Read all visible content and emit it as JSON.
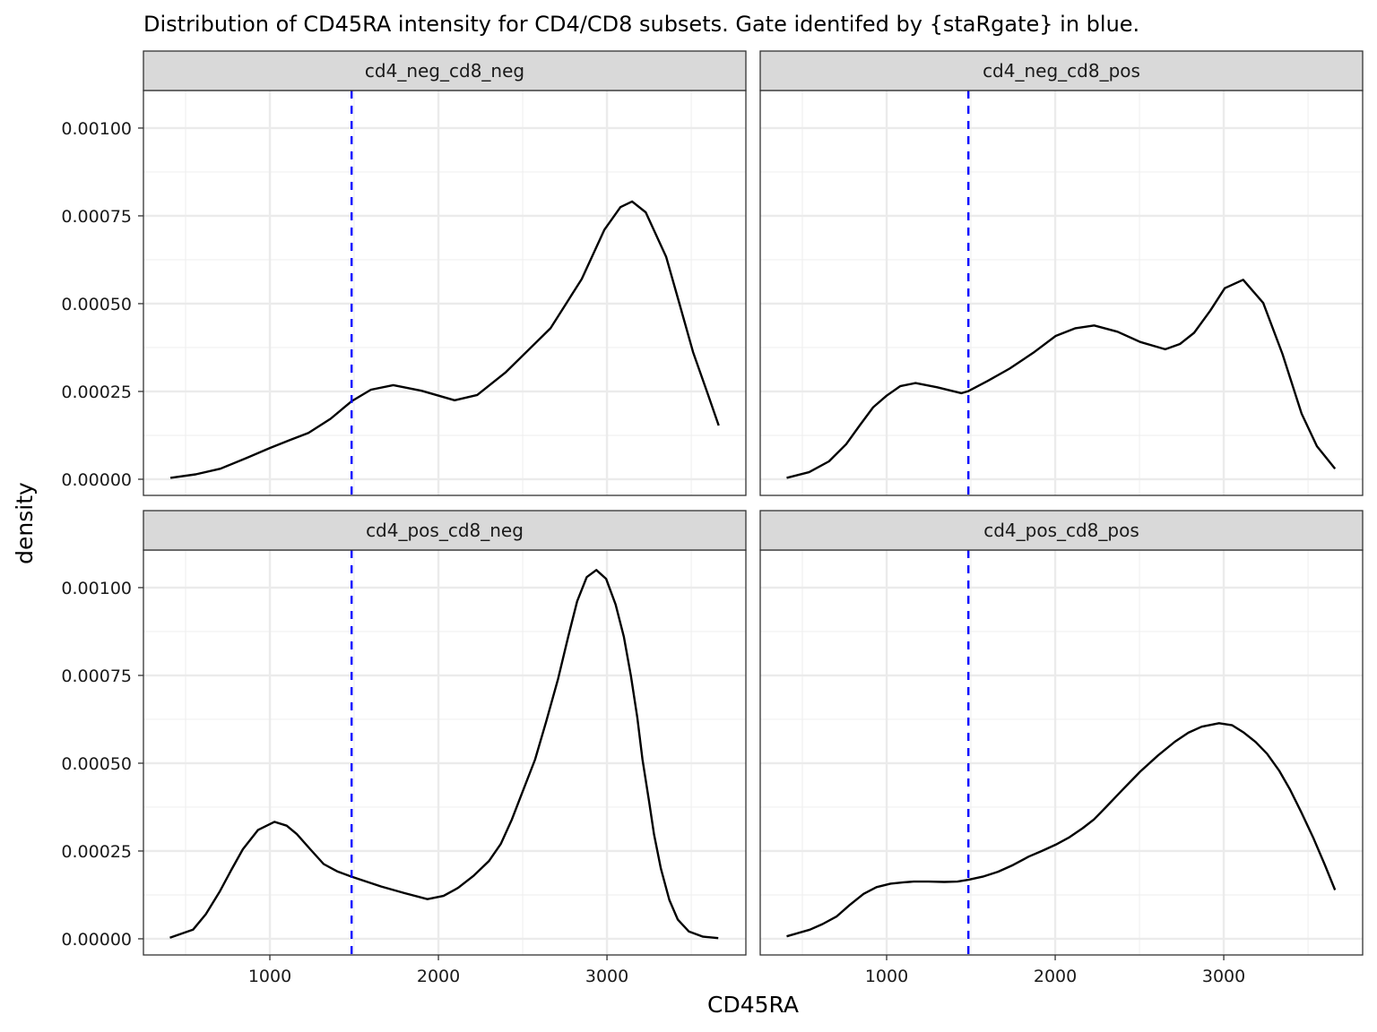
{
  "chart_data": {
    "type": "line",
    "subtype": "faceted density plot",
    "title": "Distribution of CD45RA intensity for CD4/CD8 subsets. Gate identifed by {staRgate} in blue.",
    "xlabel": "CD45RA",
    "ylabel": "density",
    "xlim": [
      250,
      3824
    ],
    "ylim": [
      -4.6e-05,
      0.001107
    ],
    "x_ticks": [
      1000,
      2000,
      3000
    ],
    "x_tick_labels": [
      "1000",
      "2000",
      "3000"
    ],
    "x_minor_ticks": [
      500,
      1500,
      2500,
      3500
    ],
    "y_ticks": [
      0,
      0.00025,
      0.0005,
      0.00075,
      0.001
    ],
    "y_tick_labels": [
      "0.00000",
      "0.00025",
      "0.00050",
      "0.00075",
      "0.00100"
    ],
    "y_minor_ticks": [
      0.000125,
      0.000375,
      0.000625,
      0.000875
    ],
    "grid": true,
    "gate": {
      "x": 1485,
      "color": "#0000ff",
      "style": "dashed",
      "label": "staRgate gate"
    },
    "line_color": "#000000",
    "facets": [
      {
        "name": "cd4_neg_cd8_neg",
        "x": [
          410,
          560,
          707,
          860,
          1000,
          1120,
          1229,
          1360,
          1485,
          1600,
          1732,
          1900,
          2096,
          2230,
          2400,
          2665,
          2850,
          2984,
          3080,
          3149,
          3230,
          3351,
          3430,
          3511,
          3600,
          3663
        ],
        "y": [
          4e-06,
          1.4e-05,
          3e-05,
          6e-05,
          8.9e-05,
          0.000112,
          0.000132,
          0.000172,
          0.000222,
          0.000255,
          0.000268,
          0.000252,
          0.000225,
          0.00024,
          0.000305,
          0.00043,
          0.00057,
          0.00071,
          0.000775,
          0.000791,
          0.00076,
          0.000633,
          0.0005,
          0.000362,
          0.00024,
          0.000153
        ]
      },
      {
        "name": "cd4_neg_cd8_pos",
        "x": [
          407,
          540,
          658,
          760,
          840,
          920,
          1000,
          1080,
          1171,
          1300,
          1444,
          1485,
          1600,
          1729,
          1870,
          2003,
          2120,
          2231,
          2370,
          2504,
          2653,
          2740,
          2824,
          2920,
          3006,
          3115,
          3234,
          3348,
          3462,
          3553,
          3660
        ],
        "y": [
          4e-06,
          2e-05,
          5.1e-05,
          0.0001,
          0.000153,
          0.000205,
          0.000238,
          0.000265,
          0.000274,
          0.000262,
          0.000245,
          0.000251,
          0.00028,
          0.000315,
          0.00036,
          0.000408,
          0.00043,
          0.000438,
          0.00042,
          0.000391,
          0.00037,
          0.000385,
          0.000417,
          0.00048,
          0.000544,
          0.000568,
          0.000502,
          0.000357,
          0.000187,
          9.4e-05,
          3e-05
        ]
      },
      {
        "name": "cd4_pos_cd8_neg",
        "x": [
          407,
          544,
          620,
          704,
          770,
          840,
          930,
          1027,
          1100,
          1160,
          1240,
          1319,
          1400,
          1485,
          1661,
          1800,
          1935,
          2030,
          2117,
          2210,
          2299,
          2370,
          2436,
          2500,
          2573,
          2640,
          2710,
          2770,
          2823,
          2880,
          2937,
          2995,
          3051,
          3100,
          3142,
          3180,
          3211,
          3250,
          3279,
          3320,
          3370,
          3420,
          3485,
          3570,
          3660
        ],
        "y": [
          3e-06,
          2.6e-05,
          7e-05,
          0.000136,
          0.000195,
          0.000255,
          0.00031,
          0.000333,
          0.000322,
          0.000298,
          0.000255,
          0.000213,
          0.000192,
          0.000177,
          0.000149,
          0.00013,
          0.000113,
          0.000122,
          0.000145,
          0.00018,
          0.000221,
          0.00027,
          0.00034,
          0.00042,
          0.00051,
          0.00062,
          0.00074,
          0.00086,
          0.000961,
          0.00103,
          0.00105,
          0.001025,
          0.000952,
          0.00086,
          0.000748,
          0.00063,
          0.00051,
          0.00039,
          0.000298,
          0.0002,
          0.000111,
          5.5e-05,
          2.1e-05,
          6e-06,
          2e-06
        ]
      },
      {
        "name": "cd4_pos_cd8_pos",
        "x": [
          407,
          544,
          620,
          704,
          780,
          863,
          940,
          1023,
          1100,
          1160,
          1250,
          1342,
          1420,
          1485,
          1570,
          1661,
          1750,
          1843,
          1920,
          2003,
          2080,
          2163,
          2230,
          2299,
          2400,
          2504,
          2610,
          2710,
          2790,
          2869,
          2972,
          3050,
          3120,
          3190,
          3257,
          3330,
          3393,
          3460,
          3530,
          3600,
          3660
        ],
        "y": [
          7e-06,
          2.6e-05,
          4.2e-05,
          6.4e-05,
          9.6e-05,
          0.000128,
          0.000147,
          0.000157,
          0.000161,
          0.000163,
          0.000163,
          0.000162,
          0.000163,
          0.000168,
          0.000177,
          0.000191,
          0.00021,
          0.000234,
          0.00025,
          0.000268,
          0.000288,
          0.000315,
          0.00034,
          0.000374,
          0.000425,
          0.000476,
          0.000522,
          0.000561,
          0.000587,
          0.000604,
          0.000614,
          0.000608,
          0.000587,
          0.00056,
          0.000527,
          0.000478,
          0.000425,
          0.00036,
          0.000289,
          0.00021,
          0.000139
        ]
      }
    ]
  }
}
